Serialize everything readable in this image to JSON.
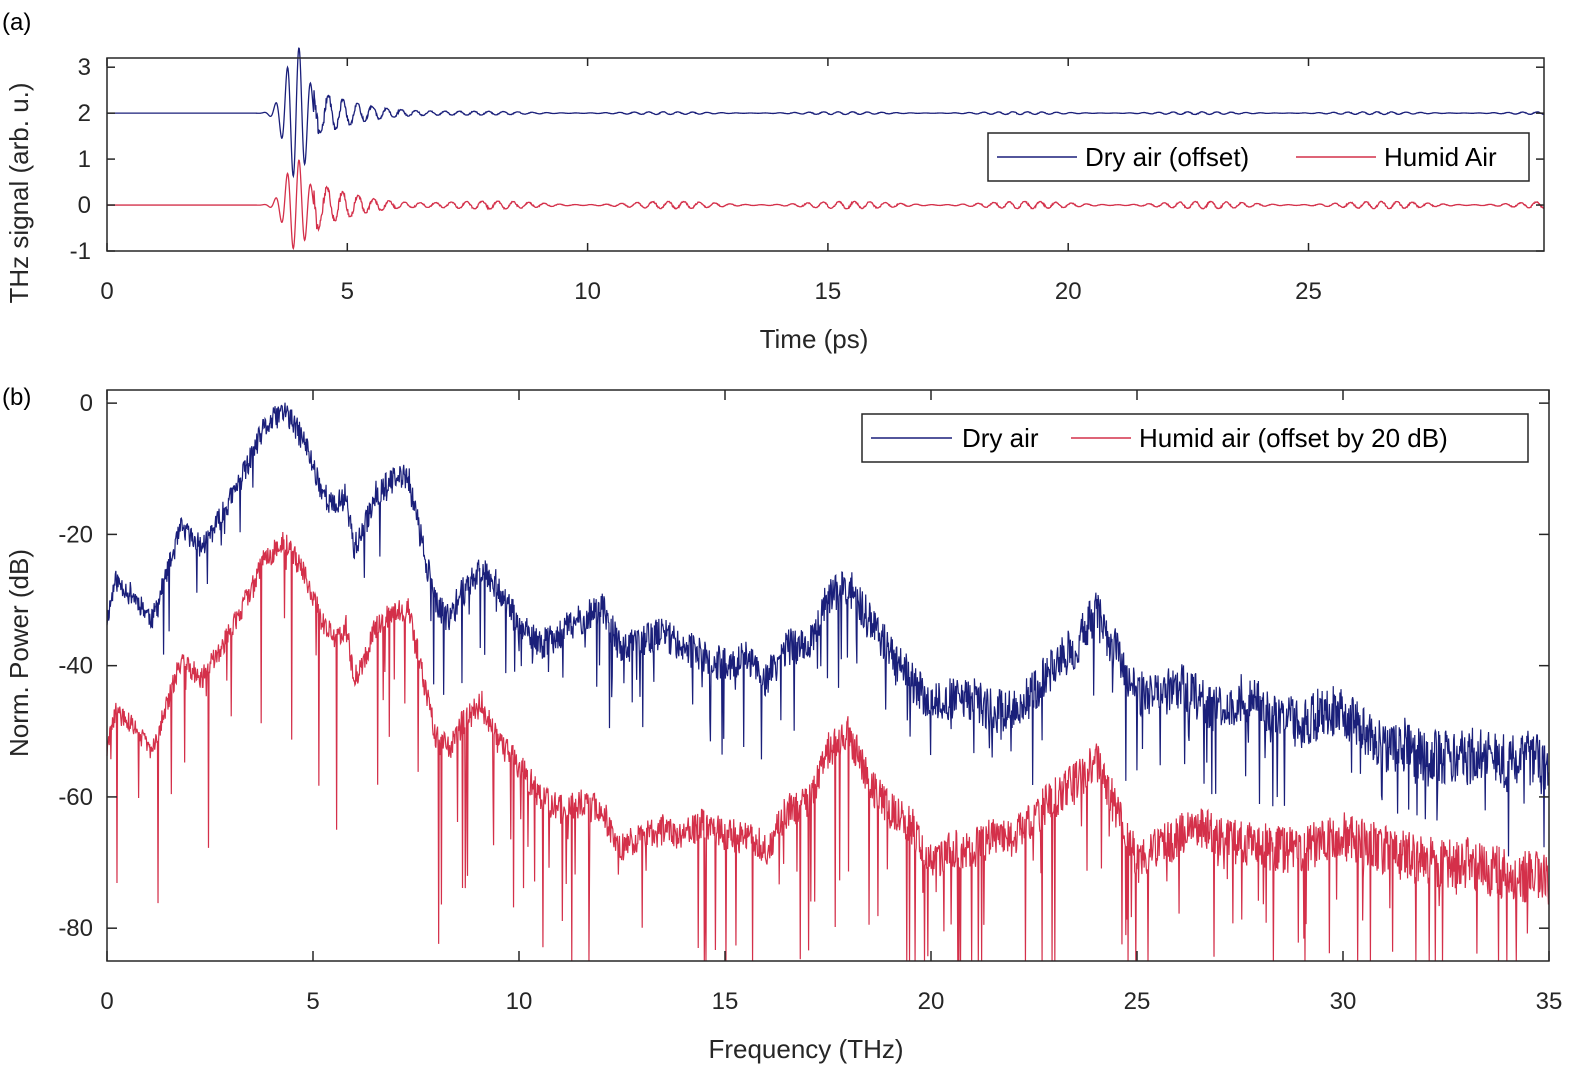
{
  "figure": {
    "panel_a_label": "(a)",
    "panel_b_label": "(b)"
  },
  "colors": {
    "dry": "#1a1f7a",
    "humid": "#d4304a",
    "axis": "#262626"
  },
  "chart_data": [
    {
      "type": "line",
      "panel": "a",
      "title": "",
      "xlabel": "Time (ps)",
      "ylabel": "THz signal (arb. u.)",
      "xlim": [
        0,
        29.9
      ],
      "ylim": [
        -1,
        3.2
      ],
      "xticks": [
        0,
        5,
        10,
        15,
        20,
        25
      ],
      "xtick_labels": [
        "0",
        "5",
        "10",
        "15",
        "20",
        "25"
      ],
      "yticks": [
        -1,
        0,
        1,
        2,
        3
      ],
      "ytick_labels": [
        "-1",
        "0",
        "1",
        "2",
        "3"
      ],
      "grid": false,
      "legend_position": "right, middle",
      "series": [
        {
          "name": "Dry air (offset)",
          "color": "#1a1f7a",
          "baseline": 2,
          "features": [
            {
              "t": 3.85,
              "y": 3.0
            },
            {
              "t": 3.75,
              "y": 1.55
            },
            {
              "t": 4.0,
              "y": 1.25
            },
            {
              "t": 4.25,
              "y": 2.7
            },
            {
              "t": 4.55,
              "y": 2.35
            },
            {
              "t": 5.5,
              "y": 2.05
            }
          ]
        },
        {
          "name": "Humid Air",
          "color": "#d4304a",
          "baseline": 0,
          "features": [
            {
              "t": 3.75,
              "y": 0.9
            },
            {
              "t": 3.9,
              "y": -0.85
            },
            {
              "t": 4.1,
              "y": 0.75
            },
            {
              "t": 4.35,
              "y": -0.55
            },
            {
              "t": 4.65,
              "y": 0.35
            },
            {
              "t": 8.5,
              "y": 0.05
            }
          ]
        }
      ]
    },
    {
      "type": "line",
      "panel": "b",
      "title": "",
      "xlabel": "Frequency (THz)",
      "ylabel": "Norm. Power (dB)",
      "xlim": [
        0,
        35
      ],
      "ylim": [
        -85,
        2
      ],
      "xticks": [
        0,
        5,
        10,
        15,
        20,
        25,
        30,
        35
      ],
      "xtick_labels": [
        "0",
        "5",
        "10",
        "15",
        "20",
        "25",
        "30",
        "35"
      ],
      "yticks": [
        0,
        -20,
        -40,
        -60,
        -80
      ],
      "ytick_labels": [
        "0",
        "-20",
        "-40",
        "-60",
        "-80"
      ],
      "grid": false,
      "legend_position": "top-right",
      "series": [
        {
          "name": "Dry air",
          "color": "#1a1f7a",
          "envelope_x": [
            0,
            0.2,
            0.6,
            1.1,
            1.4,
            1.8,
            2.3,
            2.8,
            3.3,
            3.8,
            4.3,
            4.8,
            5.2,
            5.5,
            5.8,
            6.0,
            6.2,
            6.5,
            6.9,
            7.3,
            7.6,
            8.0,
            8.3,
            8.6,
            9.1,
            9.5,
            10.0,
            10.5,
            11.0,
            11.5,
            12.0,
            12.5,
            13.0,
            13.5,
            14.0,
            14.5,
            15.0,
            15.5,
            16.0,
            16.5,
            17.0,
            17.5,
            18.0,
            18.5,
            19.0,
            19.5,
            20.0,
            20.5,
            21.0,
            21.5,
            22.0,
            22.5,
            23.0,
            23.5,
            24.0,
            24.5,
            25.0,
            25.5,
            26.0,
            26.5,
            27.0,
            27.5,
            28.0,
            28.5,
            29.0,
            29.5,
            30.0,
            30.5,
            31.0,
            31.5,
            32.0,
            32.5,
            33.0,
            33.5,
            34.0,
            34.5,
            35.0
          ],
          "envelope_y": [
            -33,
            -27,
            -29,
            -33,
            -27,
            -19,
            -22,
            -17,
            -11,
            -4,
            -1,
            -6,
            -13,
            -16,
            -14,
            -22,
            -20,
            -14,
            -12,
            -11,
            -20,
            -31,
            -33,
            -29,
            -25,
            -28,
            -34,
            -37,
            -35,
            -33,
            -31,
            -38,
            -36,
            -35,
            -37,
            -39,
            -40,
            -39,
            -42,
            -37,
            -37,
            -30,
            -28,
            -33,
            -38,
            -42,
            -46,
            -45,
            -45,
            -47,
            -47,
            -44,
            -40,
            -37,
            -32,
            -38,
            -44,
            -45,
            -43,
            -45,
            -47,
            -45,
            -46,
            -48,
            -49,
            -47,
            -47,
            -50,
            -53,
            -52,
            -54,
            -54,
            -54,
            -53,
            -55,
            -54,
            -56
          ]
        },
        {
          "name": "Humid air (offset by 20 dB)",
          "color": "#d4304a",
          "offset_db": -20,
          "envelope_x": [
            0,
            0.2,
            0.6,
            1.1,
            1.4,
            1.8,
            2.3,
            2.8,
            3.3,
            3.8,
            4.3,
            4.8,
            5.2,
            5.5,
            5.8,
            6.0,
            6.2,
            6.5,
            6.9,
            7.3,
            7.6,
            8.0,
            8.3,
            8.6,
            9.1,
            9.5,
            10.0,
            10.5,
            11.0,
            11.5,
            12.0,
            12.5,
            13.0,
            13.5,
            14.0,
            14.5,
            15.0,
            15.5,
            16.0,
            16.5,
            17.0,
            17.5,
            18.0,
            18.5,
            19.0,
            19.5,
            20.0,
            20.5,
            21.0,
            21.5,
            22.0,
            22.5,
            23.0,
            23.5,
            24.0,
            24.5,
            25.0,
            25.5,
            26.0,
            26.5,
            27.0,
            27.5,
            28.0,
            28.5,
            29.0,
            29.5,
            30.0,
            30.5,
            31.0,
            31.5,
            32.0,
            32.5,
            33.0,
            33.5,
            34.0,
            34.5,
            35.0
          ],
          "envelope_y": [
            -53,
            -47,
            -49,
            -53,
            -47,
            -39,
            -42,
            -37,
            -31,
            -24,
            -21,
            -26,
            -33,
            -36,
            -34,
            -42,
            -40,
            -34,
            -32,
            -31,
            -40,
            -51,
            -53,
            -49,
            -46,
            -52,
            -55,
            -60,
            -62,
            -61,
            -62,
            -68,
            -66,
            -65,
            -66,
            -64,
            -66,
            -66,
            -68,
            -62,
            -61,
            -53,
            -50,
            -58,
            -62,
            -64,
            -70,
            -68,
            -68,
            -66,
            -66,
            -63,
            -60,
            -58,
            -54,
            -62,
            -70,
            -68,
            -66,
            -64,
            -66,
            -67,
            -67,
            -68,
            -68,
            -67,
            -66,
            -67,
            -68,
            -69,
            -70,
            -70,
            -70,
            -71,
            -72,
            -72,
            -73
          ]
        }
      ]
    }
  ]
}
